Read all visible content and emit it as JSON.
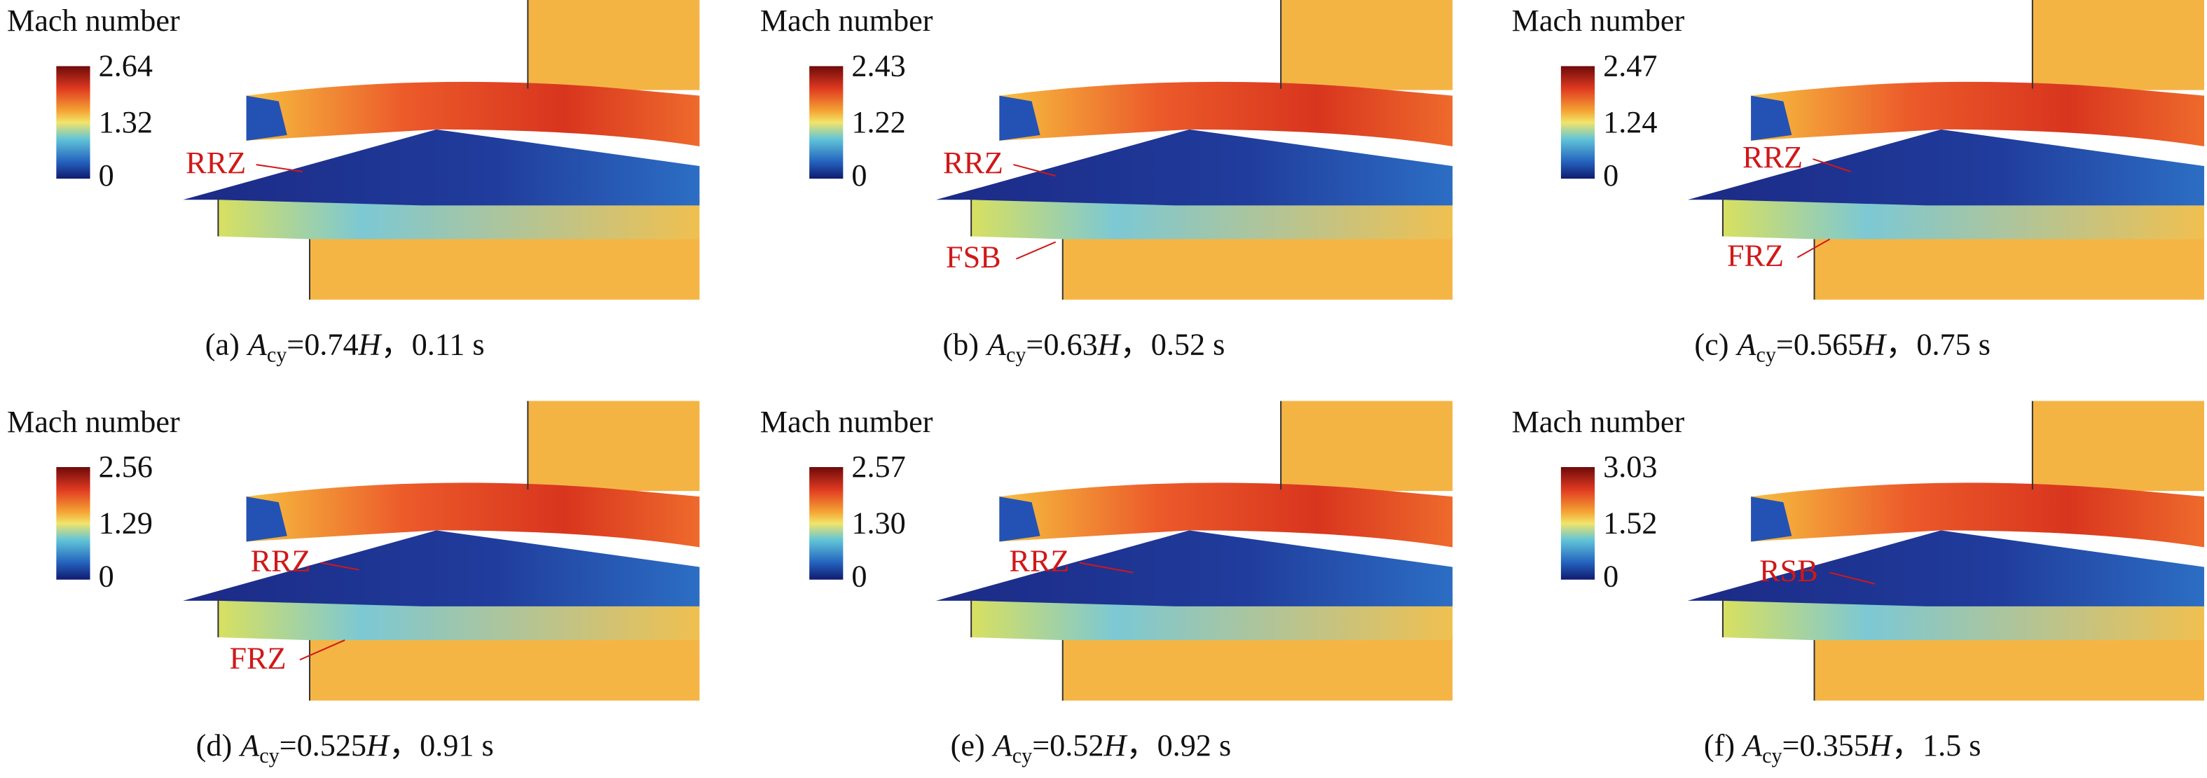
{
  "panels": [
    {
      "colorbar_title": "Mach number",
      "colorbar_labels": [
        "2.64",
        "1.32",
        "0"
      ],
      "annotations": [
        "RRZ"
      ],
      "caption": {
        "label": "(a)",
        "symbol": "A",
        "subscript": "cy",
        "value": "=0.74",
        "unit": "H",
        "time": "，0.11 s"
      }
    },
    {
      "colorbar_title": "Mach number",
      "colorbar_labels": [
        "2.43",
        "1.22",
        "0"
      ],
      "annotations": [
        "RRZ",
        "FSB"
      ],
      "caption": {
        "label": "(b)",
        "symbol": "A",
        "subscript": "cy",
        "value": "=0.63",
        "unit": "H",
        "time": "，0.52 s"
      }
    },
    {
      "colorbar_title": "Mach number",
      "colorbar_labels": [
        "2.47",
        "1.24",
        "0"
      ],
      "annotations": [
        "RRZ",
        "FRZ"
      ],
      "caption": {
        "label": "(c)",
        "symbol": "A",
        "subscript": "cy",
        "value": "=0.565",
        "unit": "H",
        "time": "，0.75 s"
      }
    },
    {
      "colorbar_title": "Mach number",
      "colorbar_labels": [
        "2.56",
        "1.29",
        "0"
      ],
      "annotations": [
        "RRZ",
        "FRZ"
      ],
      "caption": {
        "label": "(d)",
        "symbol": "A",
        "subscript": "cy",
        "value": "=0.525",
        "unit": "H",
        "time": "，0.91 s"
      }
    },
    {
      "colorbar_title": "Mach number",
      "colorbar_labels": [
        "2.57",
        "1.30",
        "0"
      ],
      "annotations": [
        "RRZ"
      ],
      "caption": {
        "label": "(e)",
        "symbol": "A",
        "subscript": "cy",
        "value": "=0.52",
        "unit": "H",
        "time": "，0.92 s"
      }
    },
    {
      "colorbar_title": "Mach number",
      "colorbar_labels": [
        "3.03",
        "1.52",
        "0"
      ],
      "annotations": [
        "RSB"
      ],
      "caption": {
        "label": "(f)",
        "symbol": "A",
        "subscript": "cy",
        "value": "=0.355",
        "unit": "H",
        "time": "，1.5 s"
      }
    }
  ]
}
